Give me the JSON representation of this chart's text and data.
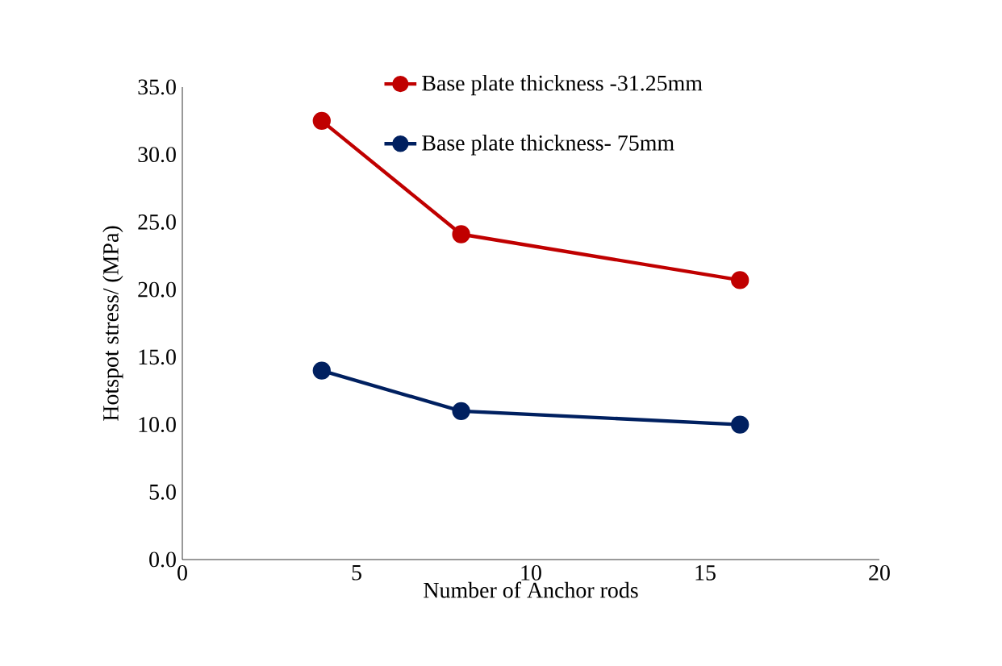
{
  "chart_data": {
    "type": "line",
    "xlabel": "Number of Anchor rods",
    "ylabel": "Hotspot stress/ (MPa)",
    "xlim": [
      0,
      20
    ],
    "xticks": [
      0,
      5,
      10,
      15,
      20
    ],
    "ylim": [
      0,
      35
    ],
    "yticks": [
      {
        "value": 0,
        "label": "0.0"
      },
      {
        "value": 5,
        "label": "5.0"
      },
      {
        "value": 10,
        "label": "10.0"
      },
      {
        "value": 15,
        "label": "15.0"
      },
      {
        "value": 20,
        "label": "20.0"
      },
      {
        "value": 25,
        "label": "25.0"
      },
      {
        "value": 30,
        "label": "30.0"
      },
      {
        "value": 35,
        "label": "35.0"
      }
    ],
    "grid": false,
    "legend": "top right",
    "marker": "circle",
    "line_style": "solid",
    "series": [
      {
        "name": "Base plate thickness -31.25mm",
        "color": "#c00000",
        "x": [
          4,
          8,
          16
        ],
        "values": [
          32.5,
          24.1,
          20.7
        ]
      },
      {
        "name": "Base plate thickness- 75mm",
        "color": "#002060",
        "x": [
          4,
          8,
          16
        ],
        "values": [
          14.0,
          11.0,
          10.0
        ]
      }
    ]
  }
}
